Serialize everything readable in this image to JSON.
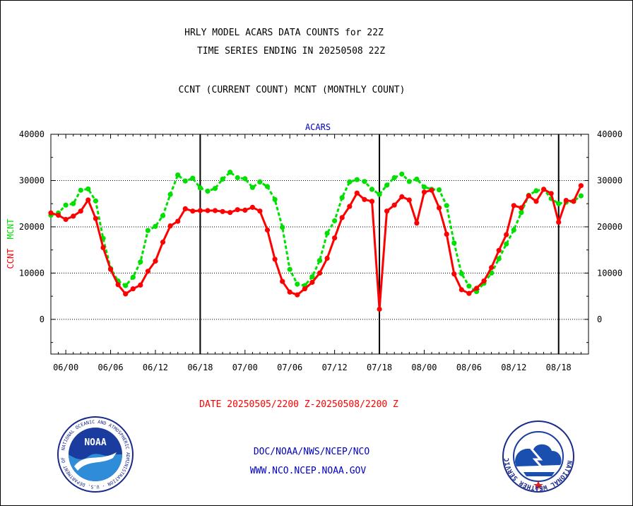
{
  "header": {
    "title_line1": "HRLY MODEL ACARS DATA COUNTS for 22Z",
    "title_line2": "TIME SERIES ENDING IN 20250508 22Z",
    "subtitle": "CCNT (CURRENT COUNT) MCNT (MONTHLY COUNT)"
  },
  "footer": {
    "date_range": "DATE 20250505/2200 Z-20250508/2200 Z",
    "link1": "DOC/NOAA/NWS/NCEP/NCO",
    "link2": "WWW.NCO.NCEP.NOAA.GOV"
  },
  "logos": {
    "noaa_text": "NOAA",
    "noaa_ring": "NATIONAL OCEANIC AND ATMOSPHERIC ADMINISTRATION · U.S. DEPARTMENT OF COMMERCE ·",
    "nws_ring": "NATIONAL WEATHER SERVICE"
  },
  "colors": {
    "ccnt": "#ff0000",
    "mcnt": "#00e000",
    "axis": "#000000",
    "label_blue": "#0000c0",
    "date_red": "#ff0000"
  },
  "chart_data": {
    "type": "line",
    "title": "ACARS",
    "ylabel_left": [
      "CCNT",
      "MCNT"
    ],
    "ylim": [
      -7500,
      40000
    ],
    "yticks": [
      0,
      10000,
      20000,
      30000,
      40000
    ],
    "ytick_labels": [
      "0",
      "10000",
      "20000",
      "30000",
      "40000"
    ],
    "xlim": [
      -2,
      70
    ],
    "xticks": [
      0,
      6,
      12,
      18,
      24,
      30,
      36,
      42,
      48,
      54,
      60,
      66
    ],
    "xtick_labels": [
      "06/00",
      "06/06",
      "06/12",
      "06/18",
      "07/00",
      "07/06",
      "07/12",
      "07/18",
      "08/00",
      "08/06",
      "08/12",
      "08/18"
    ],
    "day_boundaries": [
      18,
      42,
      66
    ],
    "grid": true,
    "series": [
      {
        "name": "CCNT",
        "x_start": -2,
        "values": [
          23000,
          22500,
          21600,
          22300,
          23400,
          25800,
          21800,
          15500,
          10800,
          7500,
          5500,
          6600,
          7400,
          10400,
          12600,
          16700,
          20200,
          21200,
          23900,
          23400,
          23500,
          23500,
          23500,
          23300,
          23100,
          23700,
          23600,
          24200,
          23400,
          19300,
          13000,
          8200,
          5900,
          5300,
          6600,
          8000,
          10000,
          13200,
          17600,
          22000,
          24400,
          27300,
          25900,
          25500,
          2200,
          23400,
          24700,
          26500,
          25800,
          20800,
          27500,
          27900,
          24100,
          18400,
          9800,
          6400,
          5600,
          6700,
          8300,
          11200,
          14900,
          18300,
          24600,
          24100,
          26700,
          25500,
          28100,
          27200,
          21000,
          25700,
          25500,
          28900
        ]
      },
      {
        "name": "MCNT",
        "x_start": -2,
        "values": [
          22500,
          23000,
          24700,
          25000,
          27900,
          28200,
          25600,
          17500,
          11000,
          8300,
          7300,
          9100,
          12400,
          19200,
          20100,
          22400,
          27000,
          31200,
          29900,
          30500,
          28400,
          27700,
          28300,
          30300,
          31800,
          30600,
          30400,
          28500,
          29700,
          28700,
          25900,
          19900,
          10800,
          7600,
          7300,
          9200,
          12700,
          18600,
          21300,
          26300,
          29700,
          30200,
          29800,
          28100,
          27000,
          29000,
          30600,
          31400,
          29800,
          30300,
          28600,
          28100,
          28000,
          24600,
          16500,
          9900,
          7200,
          6000,
          7800,
          10000,
          13100,
          16300,
          19300,
          23100,
          26800,
          27800,
          28100,
          26100,
          25000,
          25300,
          25500,
          26700
        ]
      }
    ]
  }
}
